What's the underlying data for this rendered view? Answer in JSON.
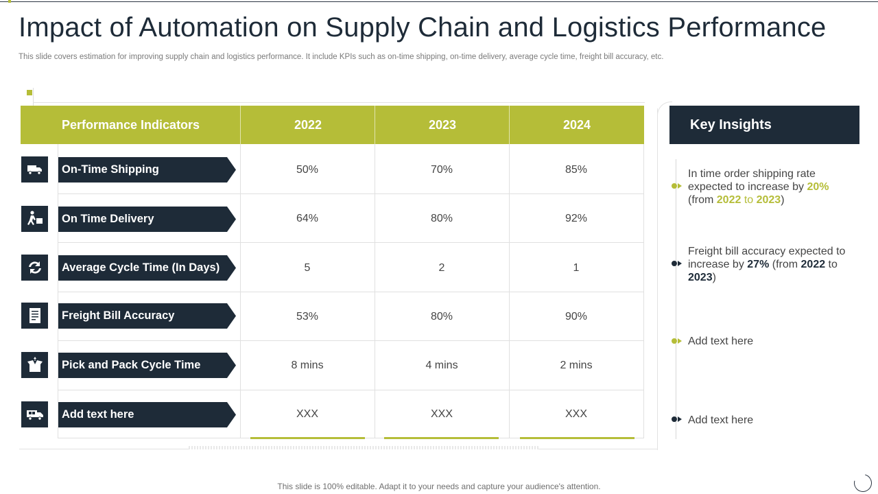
{
  "slide": {
    "title": "Impact of Automation on Supply Chain and Logistics Performance",
    "subtitle": "This slide covers estimation for improving supply chain and logistics performance. It include KPIs such as on-time shipping, on-time delivery, average cycle time, freight bill accuracy, etc.",
    "footer": "This slide is 100% editable. Adapt it to your needs and capture your audience's attention."
  },
  "colors": {
    "accent": "#b5bd38",
    "navy": "#1e2b38"
  },
  "table": {
    "headers": [
      "Performance Indicators",
      "2022",
      "2023",
      "2024"
    ],
    "rows": [
      {
        "icon": "truck-icon",
        "label": "On-Time Shipping",
        "values": [
          "50%",
          "70%",
          "85%"
        ]
      },
      {
        "icon": "delivery-person-icon",
        "label": "On Time Delivery",
        "values": [
          "64%",
          "80%",
          "92%"
        ]
      },
      {
        "icon": "cycle-arrows-icon",
        "label": "Average Cycle Time (In Days)",
        "values": [
          "5",
          "2",
          "1"
        ]
      },
      {
        "icon": "invoice-icon",
        "label": "Freight Bill Accuracy",
        "values": [
          "53%",
          "80%",
          "90%"
        ]
      },
      {
        "icon": "open-box-icon",
        "label": "Pick and Pack Cycle Time",
        "values": [
          "8 mins",
          "4 mins",
          "2 mins"
        ]
      },
      {
        "icon": "delivery-van-icon",
        "label": "Add text here",
        "values": [
          "XXX",
          "XXX",
          "XXX"
        ]
      }
    ]
  },
  "insights": {
    "title": "Key Insights",
    "items": [
      {
        "t1": "In time order shipping rate expected to increase by ",
        "pct": "20%",
        "t2": " (from ",
        "y1": "2022",
        "t3": " to ",
        "y2": "2023",
        "t4": ")"
      },
      {
        "t1": "Freight bill accuracy expected to increase by ",
        "pct": "27%",
        "t2": " (from ",
        "y1": "2022",
        "t3": " to ",
        "y2": "2023",
        "t4": ")"
      },
      {
        "text": "Add text here"
      },
      {
        "text": "Add text here"
      }
    ]
  }
}
